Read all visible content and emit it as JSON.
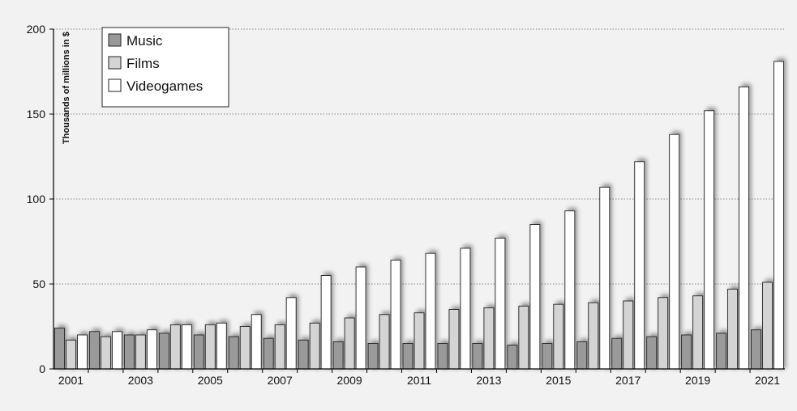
{
  "chart_data": {
    "type": "bar",
    "title": "",
    "xlabel": "",
    "ylabel": "Thousands of millions in $",
    "ylim": [
      0,
      200
    ],
    "yticks": [
      0,
      50,
      100,
      150,
      200
    ],
    "grid": true,
    "legend_position": "top-left",
    "categories": [
      "2001",
      "2002",
      "2003",
      "2004",
      "2005",
      "2006",
      "2007",
      "2008",
      "2009",
      "2010",
      "2011",
      "2012",
      "2013",
      "2014",
      "2015",
      "2016",
      "2017",
      "2018",
      "2019",
      "2020",
      "2021"
    ],
    "category_labels": [
      "2001",
      "",
      "2003",
      "",
      "2005",
      "",
      "2007",
      "",
      "2009",
      "",
      "2011",
      "",
      "2013",
      "",
      "2015",
      "",
      "2017",
      "",
      "2019",
      "",
      "2021"
    ],
    "series": [
      {
        "name": "Music",
        "color": "#9a9a9a",
        "values": [
          24,
          22,
          20,
          21,
          20,
          19,
          18,
          17,
          16,
          15,
          15,
          15,
          15,
          14,
          15,
          16,
          18,
          19,
          20,
          21,
          23
        ]
      },
      {
        "name": "Films",
        "color": "#d4d4d4",
        "values": [
          17,
          19,
          20,
          26,
          26,
          25,
          26,
          27,
          30,
          32,
          33,
          35,
          36,
          37,
          38,
          39,
          40,
          42,
          43,
          47,
          51
        ]
      },
      {
        "name": "Videogames",
        "color": "#ffffff",
        "values": [
          20,
          22,
          23,
          26,
          27,
          32,
          42,
          55,
          60,
          64,
          68,
          71,
          77,
          85,
          93,
          107,
          122,
          138,
          152,
          166,
          181
        ]
      }
    ]
  }
}
